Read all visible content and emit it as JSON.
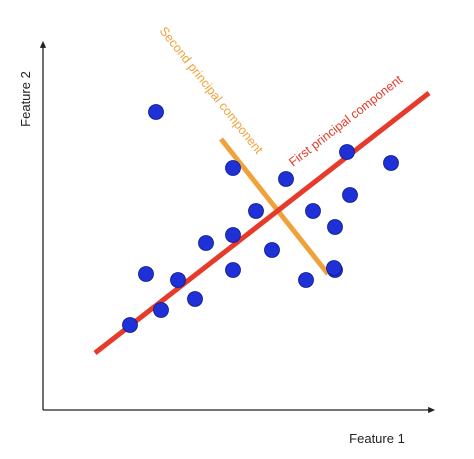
{
  "axes": {
    "xlabel": "Feature 1",
    "ylabel": "Feature 2",
    "color": "#222222"
  },
  "first_component": {
    "label": "First principal component",
    "color": "#e63a2a"
  },
  "second_component": {
    "label": "Second principal component",
    "color": "#f0a23a"
  },
  "points_color": "#1f31d6",
  "points_stroke": "#0b1a8a",
  "point_count": 21
}
